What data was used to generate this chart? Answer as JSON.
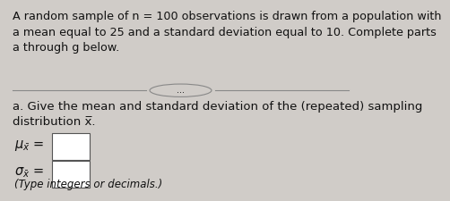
{
  "background_color": "#d0ccc8",
  "title_text": "A random sample of n = 100 observations is drawn from a population with\na mean equal to 25 and a standard deviation equal to 10. Complete parts\na through g below.",
  "divider_text": "...",
  "part_a_text": "a. Give the mean and standard deviation of the (repeated) sampling\ndistribution x̅.",
  "hint_text": "(Type integers or decimals.)",
  "font_size_title": 9.2,
  "font_size_body": 9.5,
  "font_size_small": 8.5,
  "text_color": "#111111",
  "line_color": "#888888",
  "box_edge_color": "#555555"
}
